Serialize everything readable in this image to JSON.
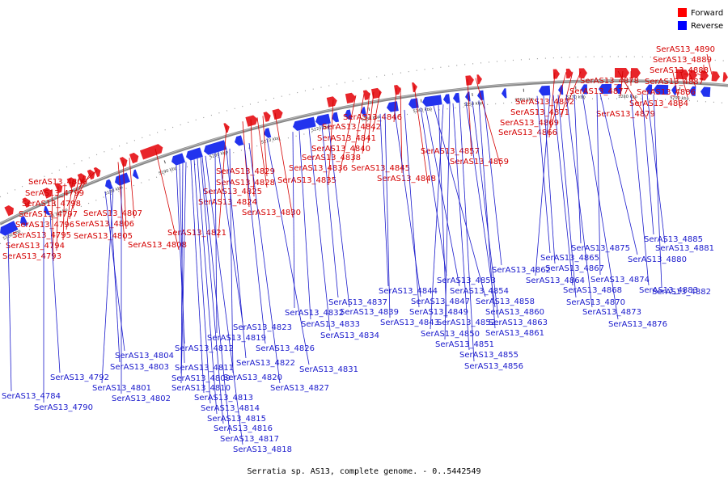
{
  "caption": "Serratia sp. AS13, complete genome. - 0..5442549",
  "legend": [
    {
      "label": "Forward",
      "color": "#ff0000"
    },
    {
      "label": "Reverse",
      "color": "#0000ff"
    }
  ],
  "colors": {
    "forward": "#e8252a",
    "reverse": "#2233ee",
    "backbone": "#888888",
    "forward_text": "#d40000",
    "reverse_text": "#1a1acc"
  },
  "ticks": [
    "5160 kbp",
    "5170 kbp",
    "5180 kbp",
    "5190 kbp",
    "5200 kbp",
    "5210 kbp",
    "5220 kbp",
    "5230 kbp",
    "5240 kbp",
    "5250 kbp",
    "5260 kbp",
    "5270 kbp",
    "5280 kbp",
    "5290 kbp"
  ],
  "forward_genes": [
    {
      "name": "SerAS13_4800"
    },
    {
      "name": "SerAS13_4799"
    },
    {
      "name": "SerAS13_4798"
    },
    {
      "name": "SerAS13_4797"
    },
    {
      "name": "SerAS13_4796"
    },
    {
      "name": "SerAS13_4795"
    },
    {
      "name": "SerAS13_4794"
    },
    {
      "name": "SerAS13_4793"
    },
    {
      "name": "SerAS13_4807"
    },
    {
      "name": "SerAS13_4806"
    },
    {
      "name": "SerAS13_4805"
    },
    {
      "name": "SerAS13_4808"
    },
    {
      "name": "SerAS13_4821"
    },
    {
      "name": "SerAS13_4829"
    },
    {
      "name": "SerAS13_4828"
    },
    {
      "name": "SerAS13_4825"
    },
    {
      "name": "SerAS13_4824"
    },
    {
      "name": "SerAS13_4830"
    },
    {
      "name": "SerAS13_4846"
    },
    {
      "name": "SerAS13_4842"
    },
    {
      "name": "SerAS13_4841"
    },
    {
      "name": "SerAS13_4840"
    },
    {
      "name": "SerAS13_4838"
    },
    {
      "name": "SerAS13_4836"
    },
    {
      "name": "SerAS13_4845"
    },
    {
      "name": "SerAS13_4835"
    },
    {
      "name": "SerAS13_4848"
    },
    {
      "name": "SerAS13_4857"
    },
    {
      "name": "SerAS13_4859"
    },
    {
      "name": "SerAS13_4872"
    },
    {
      "name": "SerAS13_4871"
    },
    {
      "name": "SerAS13_4869"
    },
    {
      "name": "SerAS13_4866"
    },
    {
      "name": "SerAS13_4878"
    },
    {
      "name": "SerAS13_4877"
    },
    {
      "name": "SerAS13_4879"
    },
    {
      "name": "SerAS13_4890"
    },
    {
      "name": "SerAS13_4889"
    },
    {
      "name": "SerAS13_4888"
    },
    {
      "name": "SerAS13_4887"
    },
    {
      "name": "SerAS13_4886"
    },
    {
      "name": "SerAS13_4884"
    }
  ],
  "reverse_genes": [
    {
      "name": "SerAS13_4784"
    },
    {
      "name": "SerAS13_4790"
    },
    {
      "name": "SerAS13_4792"
    },
    {
      "name": "SerAS13_4804"
    },
    {
      "name": "SerAS13_4803"
    },
    {
      "name": "SerAS13_4801"
    },
    {
      "name": "SerAS13_4802"
    },
    {
      "name": "SerAS13_4812"
    },
    {
      "name": "SerAS13_4811"
    },
    {
      "name": "SerAS13_4809"
    },
    {
      "name": "SerAS13_4810"
    },
    {
      "name": "SerAS13_4813"
    },
    {
      "name": "SerAS13_4814"
    },
    {
      "name": "SerAS13_4815"
    },
    {
      "name": "SerAS13_4816"
    },
    {
      "name": "SerAS13_4817"
    },
    {
      "name": "SerAS13_4818"
    },
    {
      "name": "SerAS13_4823"
    },
    {
      "name": "SerAS13_4819"
    },
    {
      "name": "SerAS13_4822"
    },
    {
      "name": "SerAS13_4820"
    },
    {
      "name": "SerAS13_4826"
    },
    {
      "name": "SerAS13_4827"
    },
    {
      "name": "SerAS13_4831"
    },
    {
      "name": "SerAS13_4832"
    },
    {
      "name": "SerAS13_4833"
    },
    {
      "name": "SerAS13_4834"
    },
    {
      "name": "SerAS13_4837"
    },
    {
      "name": "SerAS13_4839"
    },
    {
      "name": "SerAS13_4844"
    },
    {
      "name": "SerAS13_4843"
    },
    {
      "name": "SerAS13_4847"
    },
    {
      "name": "SerAS13_4849"
    },
    {
      "name": "SerAS13_4853"
    },
    {
      "name": "SerAS13_4854"
    },
    {
      "name": "SerAS13_4858"
    },
    {
      "name": "SerAS13_4852"
    },
    {
      "name": "SerAS13_4850"
    },
    {
      "name": "SerAS13_4851"
    },
    {
      "name": "SerAS13_4855"
    },
    {
      "name": "SerAS13_4856"
    },
    {
      "name": "SerAS13_4860"
    },
    {
      "name": "SerAS13_4863"
    },
    {
      "name": "SerAS13_4861"
    },
    {
      "name": "SerAS13_4862"
    },
    {
      "name": "SerAS13_4865"
    },
    {
      "name": "SerAS13_4867"
    },
    {
      "name": "SerAS13_4864"
    },
    {
      "name": "SerAS13_4868"
    },
    {
      "name": "SerAS13_4870"
    },
    {
      "name": "SerAS13_4873"
    },
    {
      "name": "SerAS13_4876"
    },
    {
      "name": "SerAS13_4875"
    },
    {
      "name": "SerAS13_4874"
    },
    {
      "name": "SerAS13_4880"
    },
    {
      "name": "SerAS13_4883"
    },
    {
      "name": "SerAS13_4885"
    },
    {
      "name": "SerAS13_4881"
    },
    {
      "name": "SerAS13_4882"
    }
  ]
}
